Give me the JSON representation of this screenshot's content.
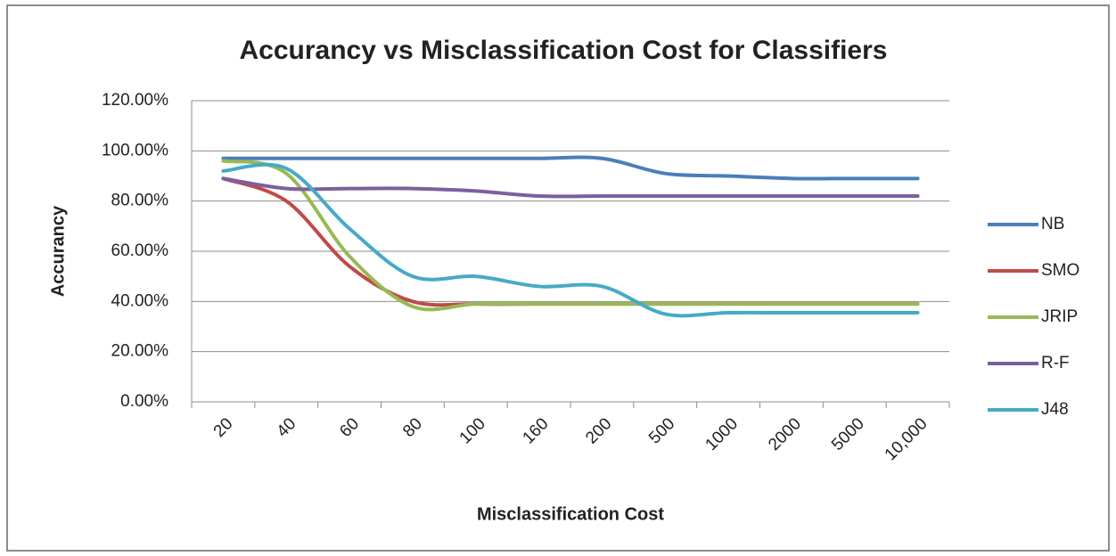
{
  "chart_data": {
    "type": "line",
    "title": "Accurancy vs Misclassification Cost for Classifiers",
    "x_label": "Misclassification  Cost",
    "y_label": "Accurancy",
    "categories": [
      "20",
      "40",
      "60",
      "80",
      "100",
      "160",
      "200",
      "500",
      "1000",
      "2000",
      "5000",
      "10,000"
    ],
    "series": [
      {
        "name": "NB",
        "color": "#4a7ebb",
        "values": [
          97,
          97,
          97,
          97,
          97,
          97,
          97,
          91,
          90,
          89,
          89,
          89
        ]
      },
      {
        "name": "SMO",
        "color": "#be4b48",
        "values": [
          89,
          80,
          54,
          40,
          39,
          39,
          39,
          39,
          39,
          39,
          39,
          39
        ]
      },
      {
        "name": "JRIP",
        "color": "#98b954",
        "values": [
          96,
          91,
          58,
          38,
          39,
          39,
          39,
          39,
          39,
          39,
          39,
          39
        ]
      },
      {
        "name": "R-F",
        "color": "#7d5fa0",
        "values": [
          89,
          85,
          85,
          85,
          84,
          82,
          82,
          82,
          82,
          82,
          82,
          82
        ]
      },
      {
        "name": "J48",
        "color": "#46aac5",
        "values": [
          92,
          93,
          69,
          50,
          50,
          46,
          46,
          35,
          35.5,
          35.5,
          35.5,
          35.5
        ]
      }
    ],
    "ylim": [
      0,
      120
    ],
    "yticks": [
      {
        "value": 0,
        "label": "0.00%"
      },
      {
        "value": 20,
        "label": "20.00%"
      },
      {
        "value": 40,
        "label": "40.00%"
      },
      {
        "value": 60,
        "label": "60.00%"
      },
      {
        "value": 80,
        "label": "80.00%"
      },
      {
        "value": 100,
        "label": "100.00%"
      },
      {
        "value": 120,
        "label": "120.00%"
      }
    ],
    "grid": true,
    "legend": "right"
  }
}
